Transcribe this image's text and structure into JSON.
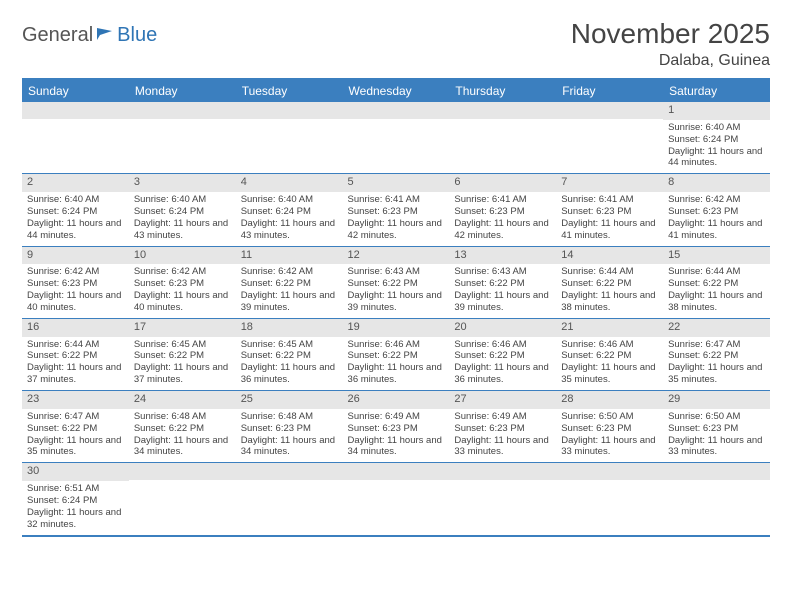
{
  "logo": {
    "part1": "General",
    "part2": "Blue"
  },
  "title": "November 2025",
  "location": "Dalaba, Guinea",
  "colors": {
    "header_bar": "#3b7fbf",
    "daynum_bg": "#e6e6e6",
    "text": "#444444",
    "logo_gray": "#555555",
    "logo_blue": "#2f75b5"
  },
  "fonts": {
    "month_title_size": 28,
    "location_size": 16,
    "dayheader_size": 12,
    "cell_size": 9.5
  },
  "day_headers": [
    "Sunday",
    "Monday",
    "Tuesday",
    "Wednesday",
    "Thursday",
    "Friday",
    "Saturday"
  ],
  "weeks": [
    [
      {
        "n": "",
        "sr": "",
        "ss": "",
        "dl": ""
      },
      {
        "n": "",
        "sr": "",
        "ss": "",
        "dl": ""
      },
      {
        "n": "",
        "sr": "",
        "ss": "",
        "dl": ""
      },
      {
        "n": "",
        "sr": "",
        "ss": "",
        "dl": ""
      },
      {
        "n": "",
        "sr": "",
        "ss": "",
        "dl": ""
      },
      {
        "n": "",
        "sr": "",
        "ss": "",
        "dl": ""
      },
      {
        "n": "1",
        "sr": "Sunrise: 6:40 AM",
        "ss": "Sunset: 6:24 PM",
        "dl": "Daylight: 11 hours and 44 minutes."
      }
    ],
    [
      {
        "n": "2",
        "sr": "Sunrise: 6:40 AM",
        "ss": "Sunset: 6:24 PM",
        "dl": "Daylight: 11 hours and 44 minutes."
      },
      {
        "n": "3",
        "sr": "Sunrise: 6:40 AM",
        "ss": "Sunset: 6:24 PM",
        "dl": "Daylight: 11 hours and 43 minutes."
      },
      {
        "n": "4",
        "sr": "Sunrise: 6:40 AM",
        "ss": "Sunset: 6:24 PM",
        "dl": "Daylight: 11 hours and 43 minutes."
      },
      {
        "n": "5",
        "sr": "Sunrise: 6:41 AM",
        "ss": "Sunset: 6:23 PM",
        "dl": "Daylight: 11 hours and 42 minutes."
      },
      {
        "n": "6",
        "sr": "Sunrise: 6:41 AM",
        "ss": "Sunset: 6:23 PM",
        "dl": "Daylight: 11 hours and 42 minutes."
      },
      {
        "n": "7",
        "sr": "Sunrise: 6:41 AM",
        "ss": "Sunset: 6:23 PM",
        "dl": "Daylight: 11 hours and 41 minutes."
      },
      {
        "n": "8",
        "sr": "Sunrise: 6:42 AM",
        "ss": "Sunset: 6:23 PM",
        "dl": "Daylight: 11 hours and 41 minutes."
      }
    ],
    [
      {
        "n": "9",
        "sr": "Sunrise: 6:42 AM",
        "ss": "Sunset: 6:23 PM",
        "dl": "Daylight: 11 hours and 40 minutes."
      },
      {
        "n": "10",
        "sr": "Sunrise: 6:42 AM",
        "ss": "Sunset: 6:23 PM",
        "dl": "Daylight: 11 hours and 40 minutes."
      },
      {
        "n": "11",
        "sr": "Sunrise: 6:42 AM",
        "ss": "Sunset: 6:22 PM",
        "dl": "Daylight: 11 hours and 39 minutes."
      },
      {
        "n": "12",
        "sr": "Sunrise: 6:43 AM",
        "ss": "Sunset: 6:22 PM",
        "dl": "Daylight: 11 hours and 39 minutes."
      },
      {
        "n": "13",
        "sr": "Sunrise: 6:43 AM",
        "ss": "Sunset: 6:22 PM",
        "dl": "Daylight: 11 hours and 39 minutes."
      },
      {
        "n": "14",
        "sr": "Sunrise: 6:44 AM",
        "ss": "Sunset: 6:22 PM",
        "dl": "Daylight: 11 hours and 38 minutes."
      },
      {
        "n": "15",
        "sr": "Sunrise: 6:44 AM",
        "ss": "Sunset: 6:22 PM",
        "dl": "Daylight: 11 hours and 38 minutes."
      }
    ],
    [
      {
        "n": "16",
        "sr": "Sunrise: 6:44 AM",
        "ss": "Sunset: 6:22 PM",
        "dl": "Daylight: 11 hours and 37 minutes."
      },
      {
        "n": "17",
        "sr": "Sunrise: 6:45 AM",
        "ss": "Sunset: 6:22 PM",
        "dl": "Daylight: 11 hours and 37 minutes."
      },
      {
        "n": "18",
        "sr": "Sunrise: 6:45 AM",
        "ss": "Sunset: 6:22 PM",
        "dl": "Daylight: 11 hours and 36 minutes."
      },
      {
        "n": "19",
        "sr": "Sunrise: 6:46 AM",
        "ss": "Sunset: 6:22 PM",
        "dl": "Daylight: 11 hours and 36 minutes."
      },
      {
        "n": "20",
        "sr": "Sunrise: 6:46 AM",
        "ss": "Sunset: 6:22 PM",
        "dl": "Daylight: 11 hours and 36 minutes."
      },
      {
        "n": "21",
        "sr": "Sunrise: 6:46 AM",
        "ss": "Sunset: 6:22 PM",
        "dl": "Daylight: 11 hours and 35 minutes."
      },
      {
        "n": "22",
        "sr": "Sunrise: 6:47 AM",
        "ss": "Sunset: 6:22 PM",
        "dl": "Daylight: 11 hours and 35 minutes."
      }
    ],
    [
      {
        "n": "23",
        "sr": "Sunrise: 6:47 AM",
        "ss": "Sunset: 6:22 PM",
        "dl": "Daylight: 11 hours and 35 minutes."
      },
      {
        "n": "24",
        "sr": "Sunrise: 6:48 AM",
        "ss": "Sunset: 6:22 PM",
        "dl": "Daylight: 11 hours and 34 minutes."
      },
      {
        "n": "25",
        "sr": "Sunrise: 6:48 AM",
        "ss": "Sunset: 6:23 PM",
        "dl": "Daylight: 11 hours and 34 minutes."
      },
      {
        "n": "26",
        "sr": "Sunrise: 6:49 AM",
        "ss": "Sunset: 6:23 PM",
        "dl": "Daylight: 11 hours and 34 minutes."
      },
      {
        "n": "27",
        "sr": "Sunrise: 6:49 AM",
        "ss": "Sunset: 6:23 PM",
        "dl": "Daylight: 11 hours and 33 minutes."
      },
      {
        "n": "28",
        "sr": "Sunrise: 6:50 AM",
        "ss": "Sunset: 6:23 PM",
        "dl": "Daylight: 11 hours and 33 minutes."
      },
      {
        "n": "29",
        "sr": "Sunrise: 6:50 AM",
        "ss": "Sunset: 6:23 PM",
        "dl": "Daylight: 11 hours and 33 minutes."
      }
    ],
    [
      {
        "n": "30",
        "sr": "Sunrise: 6:51 AM",
        "ss": "Sunset: 6:24 PM",
        "dl": "Daylight: 11 hours and 32 minutes."
      },
      {
        "n": "",
        "sr": "",
        "ss": "",
        "dl": ""
      },
      {
        "n": "",
        "sr": "",
        "ss": "",
        "dl": ""
      },
      {
        "n": "",
        "sr": "",
        "ss": "",
        "dl": ""
      },
      {
        "n": "",
        "sr": "",
        "ss": "",
        "dl": ""
      },
      {
        "n": "",
        "sr": "",
        "ss": "",
        "dl": ""
      },
      {
        "n": "",
        "sr": "",
        "ss": "",
        "dl": ""
      }
    ]
  ]
}
